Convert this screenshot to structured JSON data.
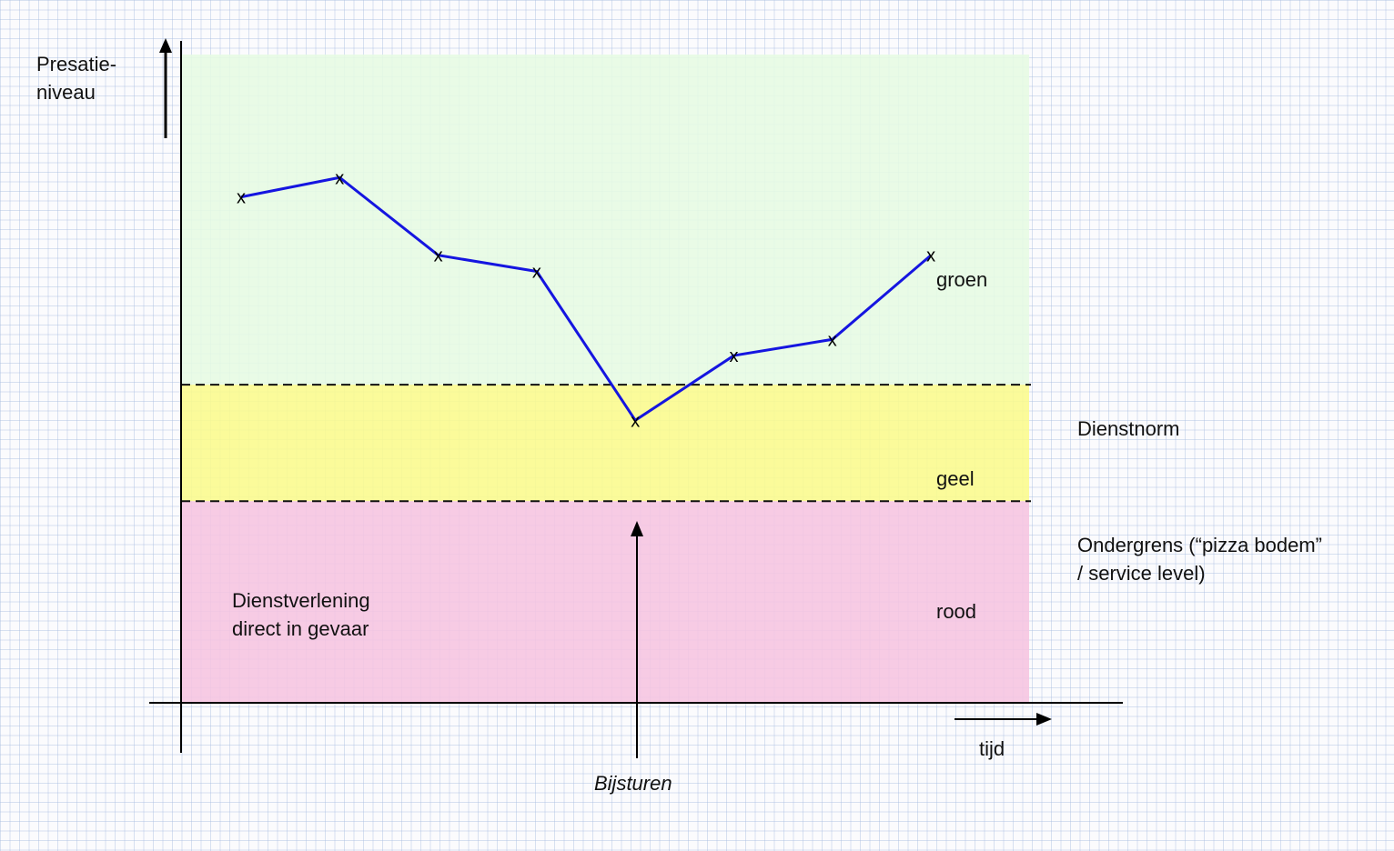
{
  "chart_data": {
    "type": "line",
    "title": "",
    "ylabel": "Presatie-\nniveau",
    "xlabel": "tijd",
    "ylim": [
      0,
      100
    ],
    "zones": [
      {
        "name": "groen",
        "from": 49,
        "to": 100,
        "color": "#e6fbe2"
      },
      {
        "name": "geel",
        "from": 31,
        "to": 49,
        "color": "#fafa8c"
      },
      {
        "name": "rood",
        "from": 0,
        "to": 31,
        "color": "#f6c4e0"
      }
    ],
    "thresholds": [
      {
        "label": "Dienstnorm",
        "value": 49
      },
      {
        "label": "Ondergrens (“pizza bodem” / service level)",
        "value": 31
      }
    ],
    "series": [
      {
        "marker": "x",
        "color": "#1515e0",
        "x": [
          1,
          2,
          3,
          4,
          5,
          6,
          7,
          8
        ],
        "y": [
          78,
          81,
          69,
          66.5,
          43.5,
          53.5,
          56,
          69
        ]
      }
    ],
    "annotations": [
      {
        "text": "Dienstverlening\ndirect in gevaar",
        "zone": "rood"
      },
      {
        "text": "Bijsturen",
        "style": "italic",
        "x": 5
      }
    ]
  }
}
